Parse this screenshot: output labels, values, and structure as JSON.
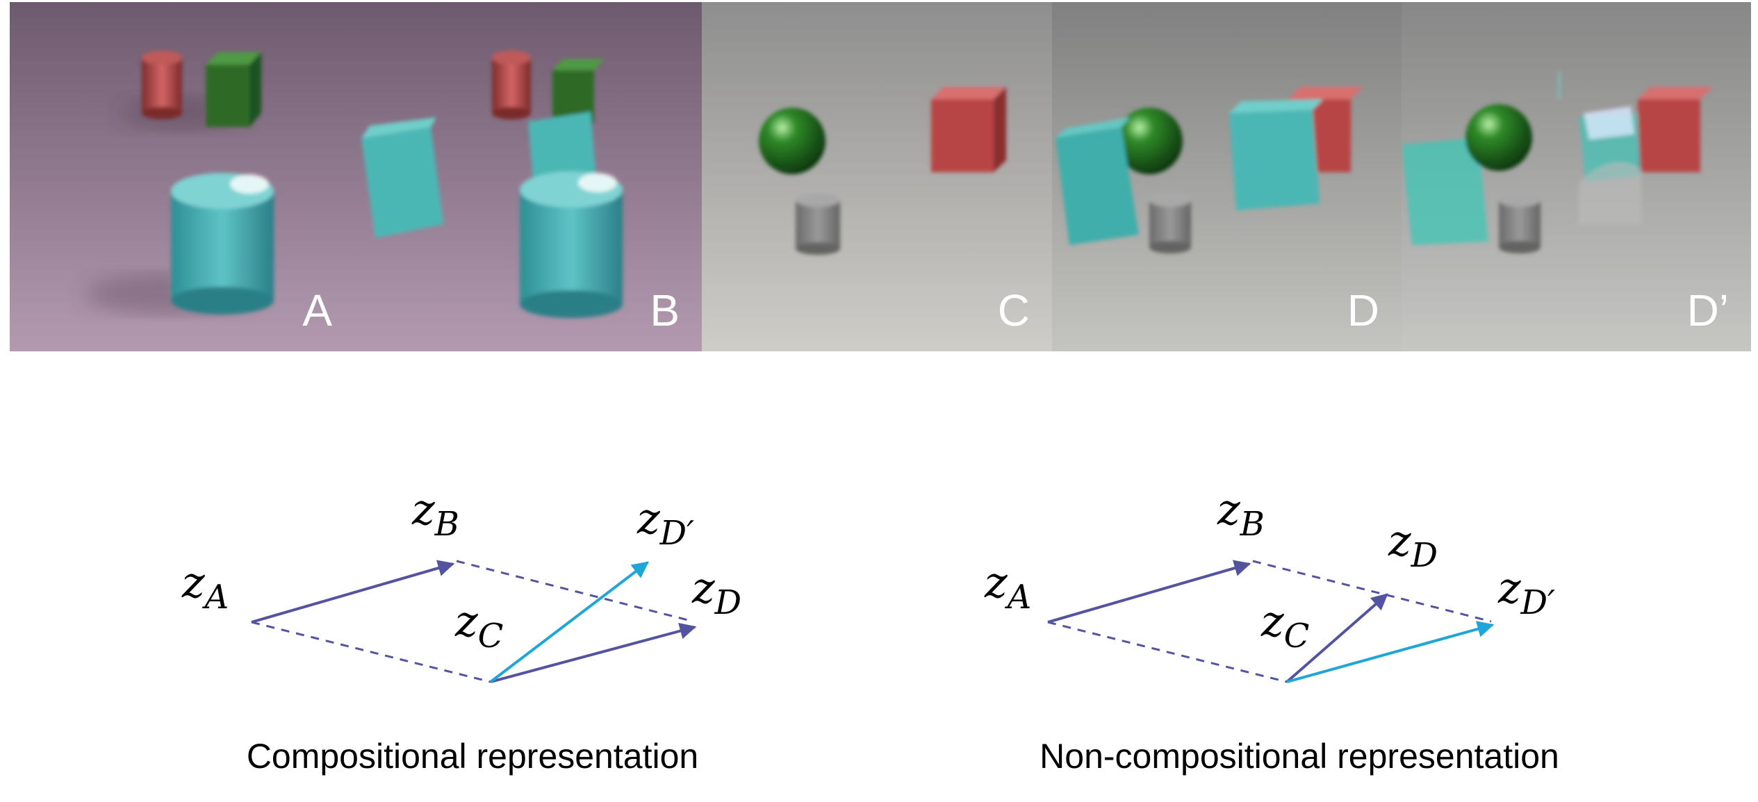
{
  "scenes": [
    {
      "letter": "A",
      "bg_top": "#6e5a6e",
      "bg_bottom": "#b39ab0"
    },
    {
      "letter": "B",
      "bg_top": "#6e5a6e",
      "bg_bottom": "#b39ab0"
    },
    {
      "letter": "C",
      "bg_top": "#8e8e8e",
      "bg_bottom": "#cfcdc8"
    },
    {
      "letter": "D",
      "bg_top": "#808080",
      "bg_bottom": "#c4c4c0"
    },
    {
      "letter": "D’",
      "bg_top": "#878787",
      "bg_bottom": "#c6c6c3"
    }
  ],
  "diagrams": [
    {
      "caption": "Compositional representation",
      "labels": {
        "zA_main": "z",
        "zA_sub": "A",
        "zB_main": "z",
        "zB_sub": "B",
        "zC_main": "z",
        "zC_sub": "C",
        "zD_main": "z",
        "zD_sub": "D",
        "zDp_main": "z",
        "zDp_sub": "D′"
      }
    },
    {
      "caption": "Non-compositional representation",
      "labels": {
        "zA_main": "z",
        "zA_sub": "A",
        "zB_main": "z",
        "zB_sub": "B",
        "zC_main": "z",
        "zC_sub": "C",
        "zD_main": "z",
        "zD_sub": "D",
        "zDp_main": "z",
        "zDp_sub": "D′"
      }
    }
  ],
  "colors": {
    "vector": "#5353a0",
    "highlight": "#1ea6d8",
    "cyan_object": "#3fb9b2",
    "red_object": "#b84545",
    "green_object": "#2f7a2a",
    "gray_object": "#8a8a8a"
  }
}
